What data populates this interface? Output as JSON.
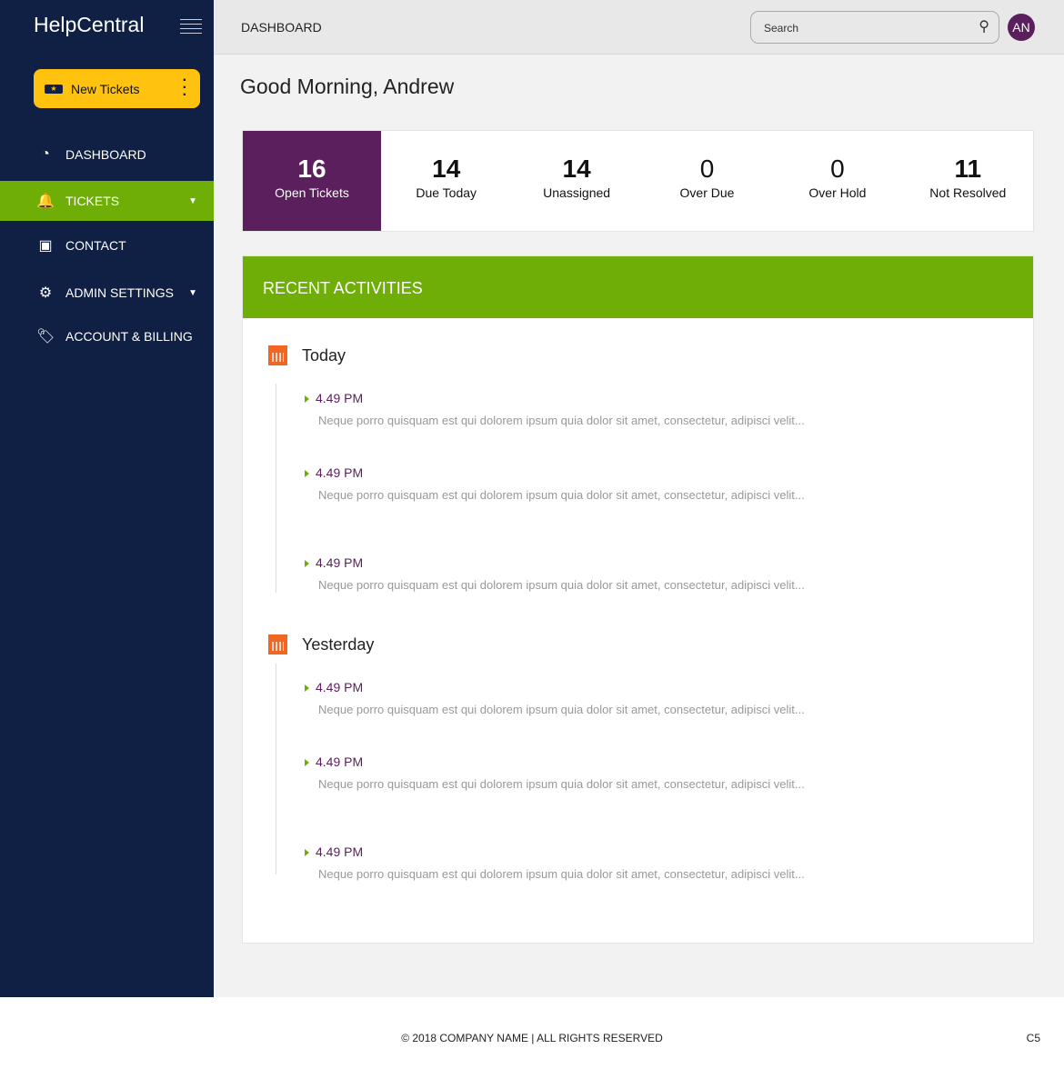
{
  "app": {
    "brand": "HelpCentral"
  },
  "sidebar": {
    "new_button": "New Tickets",
    "items": [
      {
        "label": "DASHBOARD",
        "icon": "dashboard-icon",
        "glyph": "◔"
      },
      {
        "label": "TICKETS",
        "icon": "bell-icon",
        "glyph": "🔔",
        "active": true,
        "caret": true
      },
      {
        "label": "CONTACT",
        "icon": "contact-book-icon",
        "glyph": "▣"
      },
      {
        "label": "ADMIN SETTINGS",
        "icon": "gear-icon",
        "glyph": "⚙",
        "caret": true
      },
      {
        "label": "ACCOUNT & BILLING",
        "icon": "price-tag-icon",
        "glyph": "🏷"
      }
    ]
  },
  "header": {
    "title": "DASHBOARD",
    "search_placeholder": "Search",
    "avatar": "AN"
  },
  "greeting": "Good Morning, Andrew",
  "stats": [
    {
      "value": "16",
      "label": "Open Tickets"
    },
    {
      "value": "14",
      "label": "Due Today"
    },
    {
      "value": "14",
      "label": "Unassigned"
    },
    {
      "value": "0",
      "label": "Over Due"
    },
    {
      "value": "0",
      "label": "Over Hold"
    },
    {
      "value": "11",
      "label": "Not Resolved"
    }
  ],
  "activities": {
    "title": "RECENT ACTIVITIES",
    "groups": [
      {
        "day": "Today",
        "items": [
          {
            "time": "4.49 PM",
            "text": "Neque porro quisquam est qui dolorem ipsum quia dolor sit amet, consectetur, adipisci velit..."
          },
          {
            "time": "4.49 PM",
            "text": "Neque porro quisquam est qui dolorem ipsum quia dolor sit amet, consectetur, adipisci velit..."
          },
          {
            "time": "4.49 PM",
            "text": "Neque porro quisquam est qui dolorem ipsum quia dolor sit amet, consectetur, adipisci velit..."
          }
        ]
      },
      {
        "day": "Yesterday",
        "items": [
          {
            "time": "4.49 PM",
            "text": "Neque porro quisquam est qui dolorem ipsum quia dolor sit amet, consectetur, adipisci velit..."
          },
          {
            "time": "4.49 PM",
            "text": "Neque porro quisquam est qui dolorem ipsum quia dolor sit amet, consectetur, adipisci velit..."
          },
          {
            "time": "4.49 PM",
            "text": "Neque porro quisquam est qui dolorem ipsum quia dolor sit amet, consectetur, adipisci velit..."
          }
        ]
      }
    ]
  },
  "footer": {
    "copyright": "© 2018 COMPANY NAME |  ALL RIGHTS RESERVED",
    "version": "C5"
  },
  "colors": {
    "sidebar": "#0f2044",
    "accent_green": "#6fae07",
    "purple": "#5a1f5c",
    "yellow": "#ffc20e",
    "calendar_orange": "#f26522"
  }
}
